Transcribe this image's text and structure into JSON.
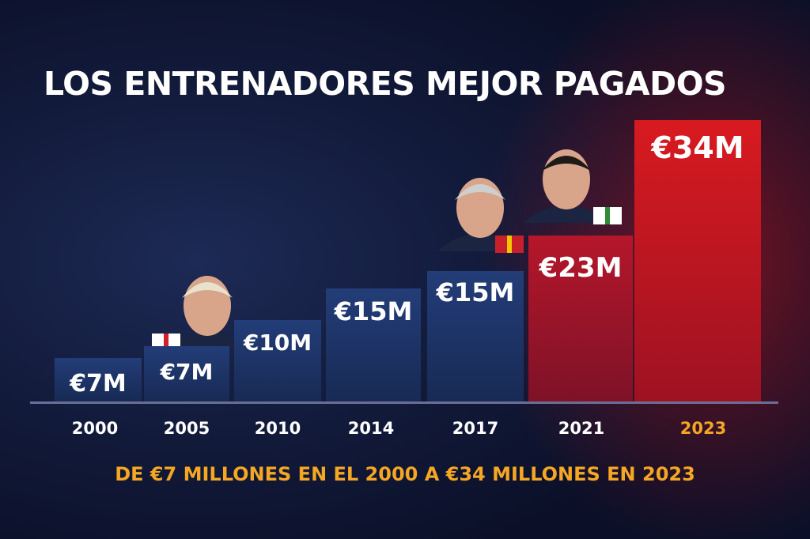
{
  "title": "LOS ENTRENADORES MEJOR PAGADOS",
  "subtitle": "DE €7 MILLONES EN EL 2000 A €34 MILLONES EN 2023",
  "colors": {
    "blue_bar": "#1c3366",
    "red_bar": "#c4161c",
    "highlight_year": "#f5a623",
    "year": "#ffffff"
  },
  "chart_data": {
    "type": "bar",
    "title": "LOS ENTRENADORES MEJOR PAGADOS",
    "categories": [
      "2000",
      "2005",
      "2010",
      "2014",
      "2017",
      "2021",
      "2023"
    ],
    "values": [
      7,
      7,
      10,
      15,
      15,
      23,
      34
    ],
    "value_labels": [
      "€7M",
      "€7M",
      "€10M",
      "€15M",
      "€15M",
      "€23M",
      "€34M"
    ],
    "unit": "€ millones",
    "highlighted_category": "2023",
    "bar_colors": [
      "blue",
      "blue",
      "blue",
      "blue",
      "blue",
      "red",
      "red"
    ],
    "coach_photos": [
      {
        "category": "2005",
        "flag": "england-flag-icon"
      },
      {
        "category": "2017",
        "flag": "flag-icon"
      },
      {
        "category": "2021",
        "flag": "flag-icon"
      }
    ],
    "grid": false,
    "legend": "none"
  }
}
